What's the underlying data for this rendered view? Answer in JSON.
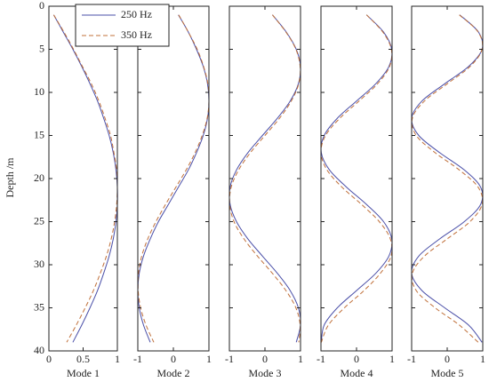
{
  "chart_data": [
    {
      "type": "line",
      "xlabel": "Mode 1",
      "ylabel": "Depth /m",
      "xlim": [
        0,
        1
      ],
      "xticks": [
        0,
        0.5,
        1
      ],
      "ylim": [
        0,
        40
      ],
      "yticks": [
        0,
        5,
        10,
        15,
        20,
        25,
        30,
        35,
        40
      ],
      "y_inverted": true,
      "legend": "upper-left",
      "y": [
        1,
        3,
        5,
        7,
        9,
        11,
        13,
        15,
        17,
        19,
        21,
        23,
        25,
        27,
        29,
        31,
        33,
        35,
        37,
        39
      ],
      "series": [
        {
          "name": "250 Hz",
          "color": "#4a4fa8",
          "dash": false,
          "values": [
            0.07,
            0.21,
            0.35,
            0.48,
            0.6,
            0.71,
            0.8,
            0.88,
            0.94,
            0.98,
            1.0,
            1.0,
            0.98,
            0.94,
            0.88,
            0.8,
            0.71,
            0.6,
            0.48,
            0.35
          ]
        },
        {
          "name": "350 Hz",
          "color": "#c0703a",
          "dash": true,
          "values": [
            0.07,
            0.22,
            0.36,
            0.49,
            0.62,
            0.73,
            0.82,
            0.9,
            0.95,
            0.99,
            1.0,
            0.99,
            0.96,
            0.91,
            0.84,
            0.75,
            0.65,
            0.53,
            0.4,
            0.26
          ]
        }
      ]
    },
    {
      "type": "line",
      "xlabel": "Mode 2",
      "xlim": [
        -1,
        1
      ],
      "xticks": [
        -1,
        0,
        1
      ],
      "ylim": [
        0,
        40
      ],
      "y_inverted": true,
      "y": [
        1,
        3,
        5,
        7,
        9,
        11,
        13,
        15,
        17,
        19,
        21,
        23,
        25,
        27,
        29,
        31,
        33,
        35,
        37,
        39
      ],
      "series": [
        {
          "color": "#4a4fa8",
          "dash": false,
          "values": [
            0.14,
            0.42,
            0.65,
            0.84,
            0.96,
            1.0,
            0.96,
            0.84,
            0.65,
            0.42,
            0.14,
            -0.14,
            -0.42,
            -0.65,
            -0.84,
            -0.96,
            -1.0,
            -0.96,
            -0.84,
            -0.65
          ]
        },
        {
          "color": "#c0703a",
          "dash": true,
          "values": [
            0.15,
            0.42,
            0.67,
            0.85,
            0.97,
            1.0,
            0.95,
            0.81,
            0.61,
            0.36,
            0.07,
            -0.22,
            -0.49,
            -0.72,
            -0.89,
            -0.98,
            -0.99,
            -0.92,
            -0.77,
            -0.55
          ]
        }
      ]
    },
    {
      "type": "line",
      "xlabel": "Mode 3",
      "xlim": [
        -1,
        1
      ],
      "xticks": [
        -1,
        0,
        1
      ],
      "ylim": [
        0,
        40
      ],
      "y_inverted": true,
      "y": [
        1,
        3,
        5,
        7,
        9,
        11,
        13,
        15,
        17,
        19,
        21,
        23,
        25,
        27,
        29,
        31,
        33,
        35,
        37,
        39
      ],
      "series": [
        {
          "color": "#4a4fa8",
          "dash": false,
          "values": [
            0.21,
            0.6,
            0.88,
            1.0,
            0.94,
            0.71,
            0.35,
            -0.07,
            -0.48,
            -0.8,
            -0.98,
            -0.98,
            -0.8,
            -0.48,
            -0.07,
            0.35,
            0.71,
            0.94,
            1.0,
            0.88
          ]
        },
        {
          "color": "#c0703a",
          "dash": true,
          "values": [
            0.21,
            0.59,
            0.87,
            0.99,
            0.95,
            0.74,
            0.41,
            0,
            -0.41,
            -0.74,
            -0.95,
            -0.99,
            -0.87,
            -0.59,
            -0.21,
            0.21,
            0.59,
            0.87,
            0.99,
            0.95
          ]
        }
      ]
    },
    {
      "type": "line",
      "xlabel": "Mode 4",
      "xlim": [
        -1,
        1
      ],
      "xticks": [
        -1,
        0,
        1
      ],
      "ylim": [
        0,
        40
      ],
      "y_inverted": true,
      "y": [
        1,
        3,
        5,
        7,
        9,
        11,
        13,
        15,
        17,
        19,
        21,
        23,
        25,
        27,
        29,
        31,
        33,
        35,
        37,
        39
      ],
      "series": [
        {
          "color": "#4a4fa8",
          "dash": false,
          "values": [
            0.28,
            0.76,
            0.99,
            0.91,
            0.54,
            0,
            -0.54,
            -0.91,
            -0.99,
            -0.76,
            -0.28,
            0.28,
            0.76,
            0.99,
            0.91,
            0.54,
            0,
            -0.54,
            -0.91,
            -0.99
          ]
        },
        {
          "color": "#c0703a",
          "dash": true,
          "values": [
            0.28,
            0.74,
            0.98,
            0.93,
            0.59,
            0.07,
            -0.47,
            -0.87,
            -1.0,
            -0.83,
            -0.41,
            0.14,
            0.64,
            0.95,
            0.97,
            0.67,
            0.21,
            -0.34,
            -0.79,
            -0.99
          ]
        }
      ]
    },
    {
      "type": "line",
      "xlabel": "Mode 5",
      "xlim": [
        -1,
        1
      ],
      "xticks": [
        -1,
        0,
        1
      ],
      "ylim": [
        0,
        40
      ],
      "y_inverted": true,
      "y": [
        1,
        3,
        5,
        7,
        9,
        11,
        13,
        15,
        17,
        19,
        21,
        23,
        25,
        27,
        29,
        31,
        33,
        35,
        37,
        39
      ],
      "series": [
        {
          "color": "#4a4fa8",
          "dash": false,
          "values": [
            0.35,
            0.88,
            0.98,
            0.6,
            -0.07,
            -0.71,
            -1.0,
            -0.8,
            -0.21,
            0.48,
            0.94,
            0.94,
            0.48,
            -0.21,
            -0.8,
            -1.0,
            -0.71,
            -0.07,
            0.6,
            0.98
          ]
        },
        {
          "color": "#c0703a",
          "dash": true,
          "values": [
            0.34,
            0.87,
            0.98,
            0.64,
            0,
            -0.64,
            -0.98,
            -0.87,
            -0.34,
            0.34,
            0.87,
            0.98,
            0.64,
            0,
            -0.64,
            -0.98,
            -0.87,
            -0.34,
            0.34,
            0.87
          ]
        }
      ]
    }
  ]
}
